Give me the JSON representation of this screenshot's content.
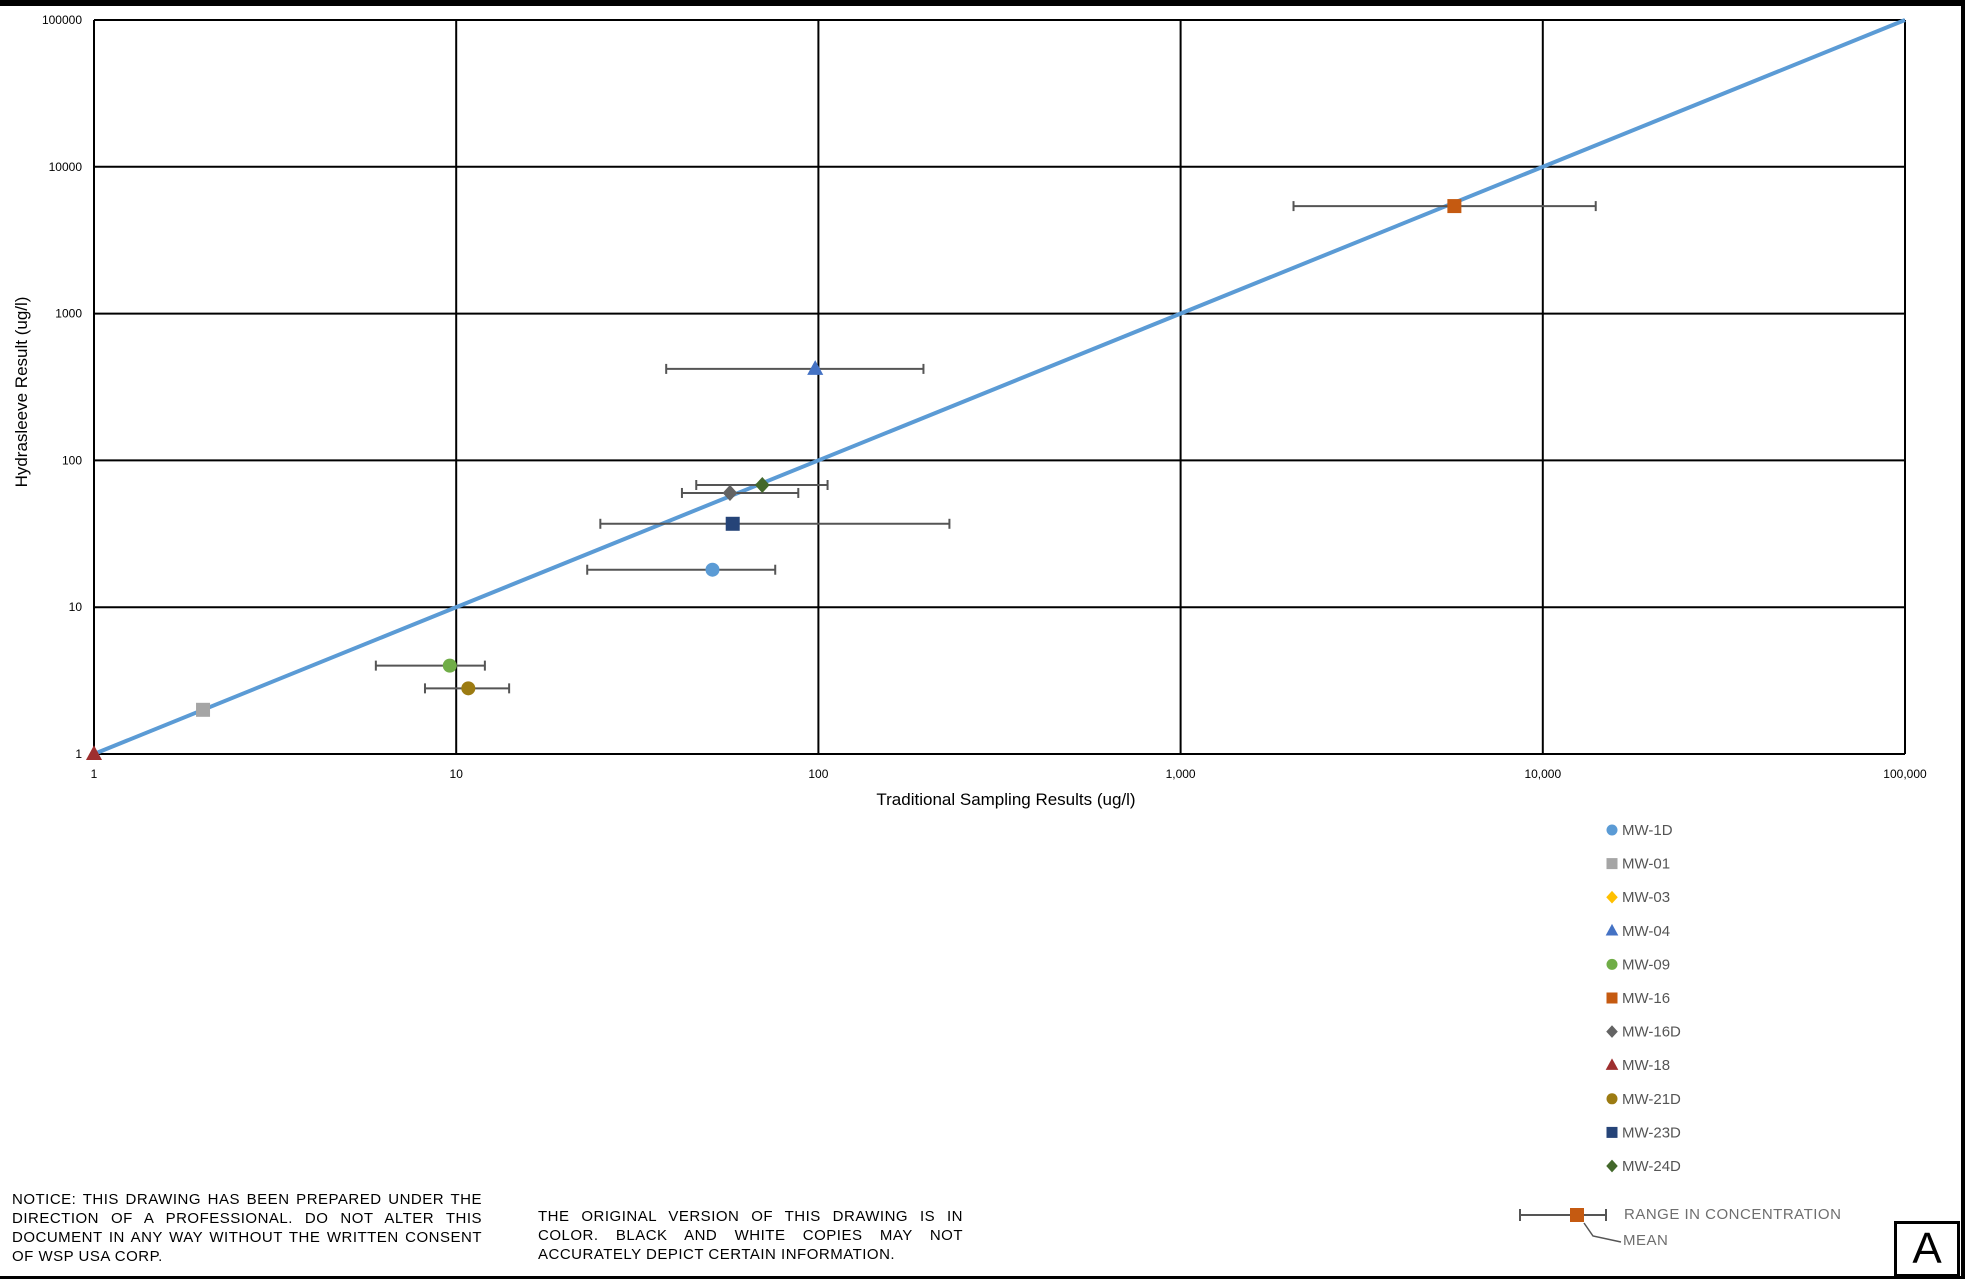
{
  "chart_data": {
    "type": "scatter",
    "x_scale": "log",
    "y_scale": "log",
    "xlim": [
      1,
      100000
    ],
    "ylim": [
      1,
      100000
    ],
    "grid": true,
    "xlabel": "Traditional Sampling Results (ug/l)",
    "ylabel": "Hydrasleeve Result (ug/l)",
    "x_ticks": [
      "1",
      "10",
      "100",
      "1,000",
      "10,000",
      "100,000"
    ],
    "y_ticks": [
      "1",
      "10",
      "100",
      "1000",
      "10000",
      "100000"
    ],
    "reference_line": {
      "x": [
        1,
        100000
      ],
      "y": [
        1,
        100000
      ],
      "color": "#5b9bd5"
    },
    "legend_position": "bottom-right",
    "series": [
      {
        "name": "MW-1D",
        "marker": "circle",
        "color": "#5b9bd5",
        "x": 51,
        "y": 18,
        "x_err": [
          23,
          76
        ]
      },
      {
        "name": "MW-01",
        "marker": "square",
        "color": "#a5a5a5",
        "x": 2,
        "y": 2,
        "x_err": null
      },
      {
        "name": "MW-03",
        "marker": "diamond",
        "color": "#ffc000",
        "x": null,
        "y": null,
        "x_err": null
      },
      {
        "name": "MW-04",
        "marker": "triangle",
        "color": "#4472c4",
        "x": 98,
        "y": 420,
        "x_err": [
          38,
          195
        ]
      },
      {
        "name": "MW-09",
        "marker": "circle",
        "color": "#70ad47",
        "x": 9.6,
        "y": 4,
        "x_err": [
          6,
          12
        ]
      },
      {
        "name": "MW-16",
        "marker": "square",
        "color": "#c55a11",
        "x": 5700,
        "y": 5400,
        "x_err": [
          2050,
          14000
        ]
      },
      {
        "name": "MW-16D",
        "marker": "diamond",
        "color": "#636363",
        "x": 57,
        "y": 60,
        "x_err": [
          42,
          88
        ]
      },
      {
        "name": "MW-18",
        "marker": "triangle",
        "color": "#9e2f2f",
        "x": 1,
        "y": 1,
        "x_err": null
      },
      {
        "name": "MW-21D",
        "marker": "circle",
        "color": "#9c7b12",
        "x": 10.8,
        "y": 2.8,
        "x_err": [
          8.2,
          14
        ]
      },
      {
        "name": "MW-23D",
        "marker": "square",
        "color": "#264478",
        "x": 58,
        "y": 37,
        "x_err": [
          25,
          230
        ]
      },
      {
        "name": "MW-24D",
        "marker": "diamond",
        "color": "#43682b",
        "x": 70,
        "y": 68,
        "x_err": [
          46,
          106
        ]
      }
    ],
    "key": {
      "range_label": "RANGE IN CONCENTRATION",
      "mean_label": "MEAN",
      "color": "#c55a11"
    }
  },
  "notes": {
    "notice": "NOTICE: THIS DRAWING HAS BEEN PREPARED UNDER THE DIRECTION OF A PROFESSIONAL. DO NOT ALTER THIS DOCUMENT IN ANY WAY WITHOUT THE WRITTEN CONSENT OF WSP USA CORP.",
    "color_note": "THE ORIGINAL VERSION OF THIS DRAWING IS IN COLOR. BLACK AND WHITE COPIES MAY NOT ACCURATELY DEPICT CERTAIN INFORMATION."
  },
  "sheet": {
    "label": "A"
  }
}
